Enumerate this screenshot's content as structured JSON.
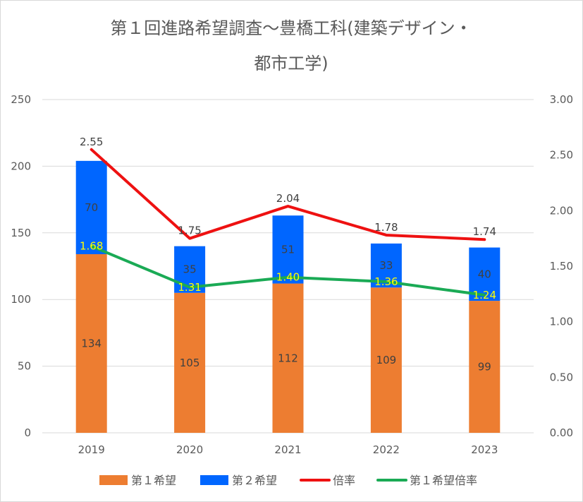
{
  "chart_data": {
    "type": "bar",
    "stacked": true,
    "title_lines": [
      "第１回進路希望調査～豊橋工科(建築デザイン・",
      "都市工学)"
    ],
    "categories": [
      "2019",
      "2020",
      "2021",
      "2022",
      "2023"
    ],
    "ylim": [
      0,
      250
    ],
    "y_ticks": [
      "0",
      "50",
      "100",
      "150",
      "200",
      "250"
    ],
    "y2lim": [
      0,
      3.0
    ],
    "y2_ticks": [
      "0.00",
      "0.50",
      "1.00",
      "1.50",
      "2.00",
      "2.50",
      "3.00"
    ],
    "grid": true,
    "legend_position": "bottom",
    "bar_series": [
      {
        "name": "第１希望",
        "color": "#ed7d31",
        "values": [
          134,
          105,
          112,
          109,
          99
        ],
        "labels": [
          "134",
          "105",
          "112",
          "109",
          "99"
        ]
      },
      {
        "name": "第２希望",
        "color": "#0066ff",
        "values": [
          70,
          35,
          51,
          33,
          40
        ],
        "labels": [
          "70",
          "35",
          "51",
          "33",
          "40"
        ]
      }
    ],
    "line_series": [
      {
        "name": "倍率",
        "color": "#ee1111",
        "axis": "right",
        "values": [
          2.55,
          1.75,
          2.04,
          1.78,
          1.74
        ],
        "labels": [
          "2.55",
          "1.75",
          "2.04",
          "1.78",
          "1.74"
        ]
      },
      {
        "name": "第１希望倍率",
        "color": "#1aaa55",
        "axis": "right",
        "values": [
          1.68,
          1.31,
          1.4,
          1.36,
          1.24
        ],
        "labels": [
          "1.68",
          "1.31",
          "1.40",
          "1.36",
          "1.24"
        ],
        "label_color": "#ffff00"
      }
    ]
  }
}
